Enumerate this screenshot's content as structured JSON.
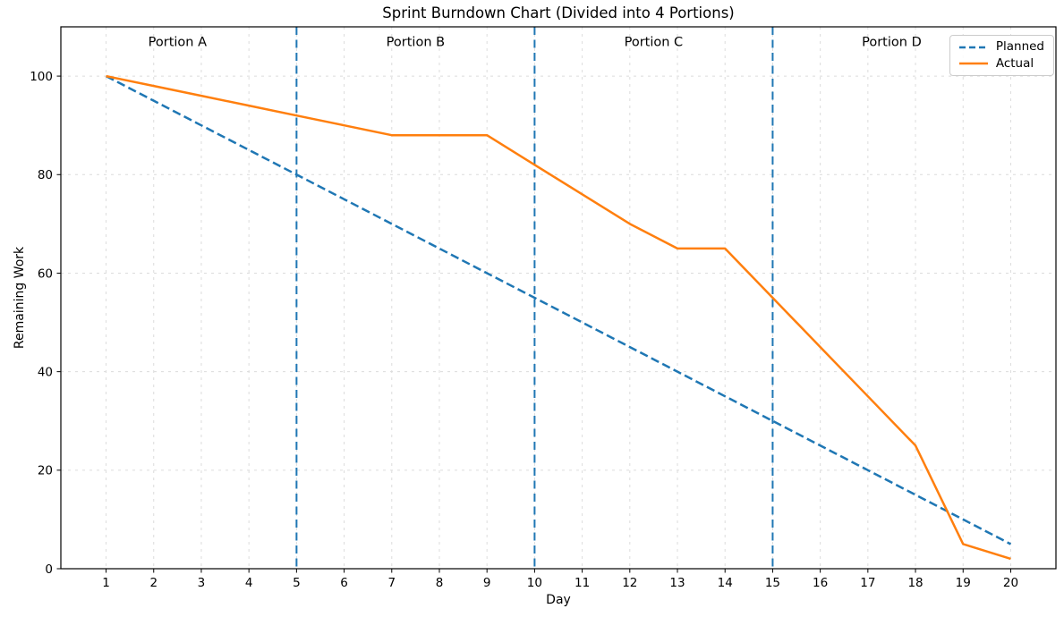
{
  "chart_data": {
    "type": "line",
    "title": "Sprint Burndown Chart (Divided into 4 Portions)",
    "xlabel": "Day",
    "ylabel": "Remaining Work",
    "x": [
      1,
      2,
      3,
      4,
      5,
      6,
      7,
      8,
      9,
      10,
      11,
      12,
      13,
      14,
      15,
      16,
      17,
      18,
      19,
      20
    ],
    "series": [
      {
        "name": "Planned",
        "color": "#1f77b4",
        "line_style": "dashed",
        "values": [
          100,
          95,
          90,
          85,
          80,
          75,
          70,
          65,
          60,
          55,
          50,
          45,
          40,
          35,
          30,
          25,
          20,
          15,
          10,
          5
        ]
      },
      {
        "name": "Actual",
        "color": "#ff7f0e",
        "line_style": "solid",
        "values": [
          100,
          98,
          96,
          94,
          92,
          90,
          88,
          88,
          88,
          82,
          76,
          70,
          65,
          65,
          55,
          45,
          35,
          25,
          5,
          2
        ]
      }
    ],
    "portion_dividers_x": [
      5,
      10,
      15
    ],
    "divider_color": "#1f77b4",
    "portion_labels": [
      {
        "text": "Portion A",
        "x": 2.5,
        "y": 107
      },
      {
        "text": "Portion B",
        "x": 7.5,
        "y": 107
      },
      {
        "text": "Portion C",
        "x": 12.5,
        "y": 107
      },
      {
        "text": "Portion D",
        "x": 17.5,
        "y": 107
      }
    ],
    "x_ticks": [
      1,
      2,
      3,
      4,
      5,
      6,
      7,
      8,
      9,
      10,
      11,
      12,
      13,
      14,
      15,
      16,
      17,
      18,
      19,
      20
    ],
    "y_ticks": [
      0,
      20,
      40,
      60,
      80,
      100
    ],
    "xlim": [
      0.05,
      20.95
    ],
    "ylim": [
      0,
      110
    ],
    "grid": true,
    "grid_color": "#dcdcdc",
    "legend": {
      "position": "upper right"
    }
  }
}
